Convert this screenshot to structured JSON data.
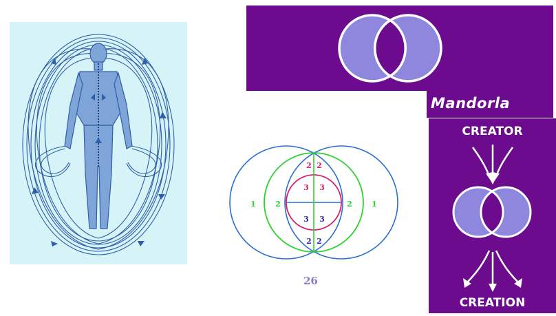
{
  "mandorla": {
    "title": "Mandorla"
  },
  "creation_diagram": {
    "top_label": "CREATOR",
    "bottom_label": "CREATION"
  },
  "geometry_diagram": {
    "figure_number": "26",
    "labels": {
      "outer_left": "1",
      "outer_right": "1",
      "middle_left": "2",
      "middle_right": "2",
      "vesica_top_left": "2",
      "vesica_top_right": "2",
      "vesica_bottom_left": "2",
      "vesica_bottom_right": "2",
      "inner_upper_left": "3",
      "inner_upper_right": "3",
      "inner_lower_left": "3",
      "inner_lower_right": "3"
    }
  },
  "colors": {
    "panel_purple": "#6c0b8e",
    "lens_lavender": "#8f86de",
    "body_panel_bg": "#d6f3f7",
    "field_blue": "#2f5fa8",
    "circle_blue": "#2c6dd6",
    "circle_green": "#2fd12f",
    "circle_magenta": "#d6206e",
    "label_purple": "#8a7bd2"
  }
}
